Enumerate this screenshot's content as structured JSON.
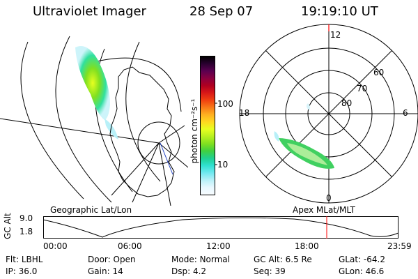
{
  "header": {
    "instrument": "Ultraviolet Imager",
    "date": "28 Sep 07",
    "time": "19:19:10 UT"
  },
  "colorbar": {
    "unit": "photon cm⁻²s⁻¹",
    "ticks": [
      "100",
      "10"
    ],
    "colors": [
      "#000000",
      "#2a0030",
      "#5a0050",
      "#8a0040",
      "#b00020",
      "#d81818",
      "#f04010",
      "#f87818",
      "#ffb020",
      "#ffd820",
      "#e8ff20",
      "#b8f020",
      "#80e020",
      "#40d040",
      "#20d090",
      "#30e0d0",
      "#70e8f0",
      "#b8f0f8",
      "#e8f8ff",
      "#f8fcff"
    ]
  },
  "panels": {
    "left_label": "Geographic Lat/Lon",
    "right_label": "Apex MLat/MLT"
  },
  "polar": {
    "mlt_labels": {
      "top": "12",
      "left": "18",
      "right": "6",
      "bottom": "0"
    },
    "lat_labels": [
      "60",
      "70",
      "80"
    ]
  },
  "altitude_plot": {
    "ylabel": "GC Alt",
    "y_ticks": [
      "9.0",
      "1.8"
    ],
    "x_ticks": [
      "00:00",
      "06:00",
      "12:00",
      "18:00",
      "23:59"
    ],
    "marker_color": "#ff0000"
  },
  "status": {
    "row1": [
      {
        "key": "Flt:",
        "value": "LBHL"
      },
      {
        "key": "Door:",
        "value": "Open"
      },
      {
        "key": "Mode:",
        "value": "Normal"
      },
      {
        "key": "GC Alt:",
        "value": "6.5 Re"
      },
      {
        "key": "GLat:",
        "value": "-64.2"
      }
    ],
    "row2": [
      {
        "key": "IP:",
        "value": "36.0"
      },
      {
        "key": "Gain:",
        "value": "14"
      },
      {
        "key": "Dsp:",
        "value": "4.2"
      },
      {
        "key": "Seq:",
        "value": "39"
      },
      {
        "key": "GLon:",
        "value": "46.6"
      }
    ]
  }
}
